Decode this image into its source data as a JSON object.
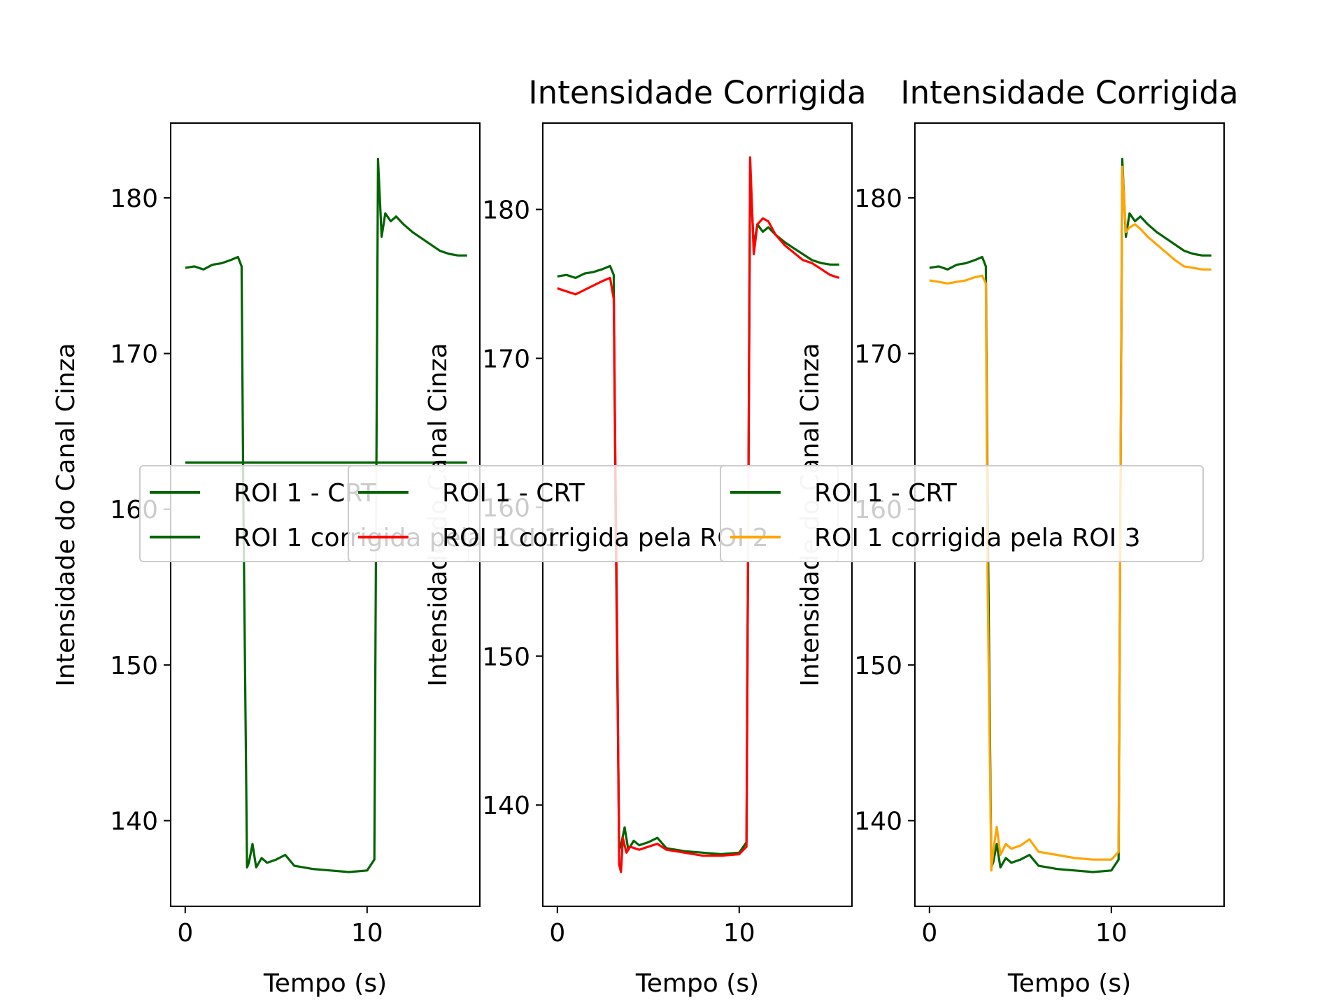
{
  "chart_data": [
    {
      "type": "line",
      "title": "",
      "xlabel": "Tempo (s)",
      "ylabel": "Intensidade do Canal Cinza",
      "xlim": [
        -0.8,
        16.2
      ],
      "ylim": [
        134.5,
        184.8
      ],
      "xticks": [
        "0",
        "10"
      ],
      "yticks": [
        "140",
        "150",
        "160",
        "170",
        "180"
      ],
      "grid": false,
      "legend_loc": "center",
      "series": [
        {
          "name": "ROI 1 - CRT",
          "color": "#006400",
          "x": [
            0,
            0.5,
            1,
            1.5,
            2,
            2.5,
            2.9,
            3.1,
            3.2,
            3.4,
            3.5,
            3.7,
            3.9,
            4.2,
            4.5,
            5,
            5.5,
            6,
            7,
            8,
            9,
            10,
            10.4,
            10.5,
            10.6,
            10.8,
            11,
            11.3,
            11.6,
            12,
            12.5,
            13,
            13.5,
            14,
            14.5,
            15,
            15.5
          ],
          "y": [
            175.5,
            175.6,
            175.4,
            175.7,
            175.8,
            176.0,
            176.2,
            175.6,
            160.0,
            137.0,
            137.3,
            138.5,
            137.0,
            137.6,
            137.3,
            137.5,
            137.8,
            137.1,
            136.9,
            136.8,
            136.7,
            136.8,
            137.5,
            160.0,
            182.5,
            177.5,
            179.0,
            178.5,
            178.8,
            178.3,
            177.8,
            177.4,
            177.0,
            176.6,
            176.4,
            176.3,
            176.3
          ]
        },
        {
          "name": "ROI 1 corrigida pela ROI 1",
          "color": "#006400",
          "x": [
            0.0,
            15.5
          ],
          "y": [
            163.0,
            163.0
          ]
        }
      ]
    },
    {
      "type": "line",
      "title": "Intensidade Corrigida",
      "xlabel": "Tempo (s)",
      "ylabel": "Intensidade do Canal Cinza",
      "xlim": [
        -0.8,
        16.2
      ],
      "ylim": [
        133.2,
        185.8
      ],
      "xticks": [
        "0",
        "10"
      ],
      "yticks": [
        "140",
        "150",
        "160",
        "170",
        "180"
      ],
      "grid": false,
      "legend_loc": "center",
      "series": [
        {
          "name": "ROI 1 - CRT",
          "color": "#006400",
          "x": [
            0,
            0.5,
            1,
            1.5,
            2,
            2.5,
            2.9,
            3.1,
            3.2,
            3.4,
            3.5,
            3.7,
            3.9,
            4.2,
            4.5,
            5,
            5.5,
            6,
            7,
            8,
            9,
            10,
            10.4,
            10.5,
            10.6,
            10.8,
            11,
            11.3,
            11.6,
            12,
            12.5,
            13,
            13.5,
            14,
            14.5,
            15,
            15.5
          ],
          "y": [
            175.5,
            175.6,
            175.4,
            175.7,
            175.8,
            176.0,
            176.2,
            175.6,
            160.0,
            137.0,
            137.3,
            138.5,
            137.0,
            137.6,
            137.3,
            137.5,
            137.8,
            137.1,
            136.9,
            136.8,
            136.7,
            136.8,
            137.5,
            160.0,
            182.5,
            177.5,
            179.0,
            178.5,
            178.8,
            178.3,
            177.8,
            177.4,
            177.0,
            176.6,
            176.4,
            176.3,
            176.3
          ]
        },
        {
          "name": "ROI 1 corrigida pela ROI 2",
          "color": "#ff0000",
          "x": [
            0,
            0.5,
            1,
            1.5,
            2,
            2.5,
            2.9,
            3.1,
            3.3,
            3.4,
            3.5,
            3.6,
            3.8,
            4.0,
            4.5,
            5,
            5.5,
            6,
            7,
            8,
            9,
            10,
            10.4,
            10.5,
            10.6,
            10.8,
            11,
            11.3,
            11.6,
            12,
            12.5,
            13,
            13.5,
            14,
            14.5,
            15,
            15.5
          ],
          "y": [
            174.7,
            174.5,
            174.3,
            174.6,
            174.9,
            175.2,
            175.4,
            174.0,
            150.0,
            136.0,
            135.5,
            137.8,
            136.8,
            137.2,
            137.0,
            137.2,
            137.4,
            137.0,
            136.8,
            136.6,
            136.6,
            136.7,
            137.2,
            160.0,
            183.5,
            177.0,
            179.0,
            179.4,
            179.2,
            178.3,
            177.6,
            177.1,
            176.6,
            176.4,
            176.0,
            175.6,
            175.4
          ]
        }
      ]
    },
    {
      "type": "line",
      "title": "Intensidade Corrigida",
      "xlabel": "Tempo (s)",
      "ylabel": "Intensidade do Canal Cinza",
      "xlim": [
        -0.8,
        16.2
      ],
      "ylim": [
        134.5,
        184.8
      ],
      "xticks": [
        "0",
        "10"
      ],
      "yticks": [
        "140",
        "150",
        "160",
        "170",
        "180"
      ],
      "grid": false,
      "legend_loc": "center",
      "series": [
        {
          "name": "ROI 1 - CRT",
          "color": "#006400",
          "x": [
            0,
            0.5,
            1,
            1.5,
            2,
            2.5,
            2.9,
            3.1,
            3.2,
            3.4,
            3.5,
            3.7,
            3.9,
            4.2,
            4.5,
            5,
            5.5,
            6,
            7,
            8,
            9,
            10,
            10.4,
            10.5,
            10.6,
            10.8,
            11,
            11.3,
            11.6,
            12,
            12.5,
            13,
            13.5,
            14,
            14.5,
            15,
            15.5
          ],
          "y": [
            175.5,
            175.6,
            175.4,
            175.7,
            175.8,
            176.0,
            176.2,
            175.6,
            160.0,
            137.0,
            137.3,
            138.5,
            137.0,
            137.6,
            137.3,
            137.5,
            137.8,
            137.1,
            136.9,
            136.8,
            136.7,
            136.8,
            137.5,
            160.0,
            182.5,
            177.5,
            179.0,
            178.5,
            178.8,
            178.3,
            177.8,
            177.4,
            177.0,
            176.6,
            176.4,
            176.3,
            176.3
          ]
        },
        {
          "name": "ROI 1 corrigida pela ROI 3",
          "color": "#ffa500",
          "x": [
            0,
            0.5,
            1,
            1.5,
            2,
            2.5,
            2.9,
            3.1,
            3.2,
            3.4,
            3.5,
            3.7,
            3.9,
            4.2,
            4.5,
            5,
            5.5,
            6,
            7,
            8,
            9,
            10,
            10.4,
            10.5,
            10.6,
            10.8,
            11,
            11.3,
            11.6,
            12,
            12.5,
            13,
            13.5,
            14,
            14.5,
            15,
            15.5
          ],
          "y": [
            174.7,
            174.6,
            174.5,
            174.6,
            174.7,
            174.9,
            175.0,
            174.5,
            155.0,
            136.8,
            138.0,
            139.6,
            137.8,
            138.5,
            138.2,
            138.4,
            138.8,
            138.0,
            137.8,
            137.6,
            137.5,
            137.5,
            138.0,
            160.0,
            182.0,
            177.8,
            178.1,
            178.3,
            178.0,
            177.5,
            177.0,
            176.5,
            176.0,
            175.6,
            175.5,
            175.4,
            175.4
          ]
        }
      ]
    }
  ]
}
